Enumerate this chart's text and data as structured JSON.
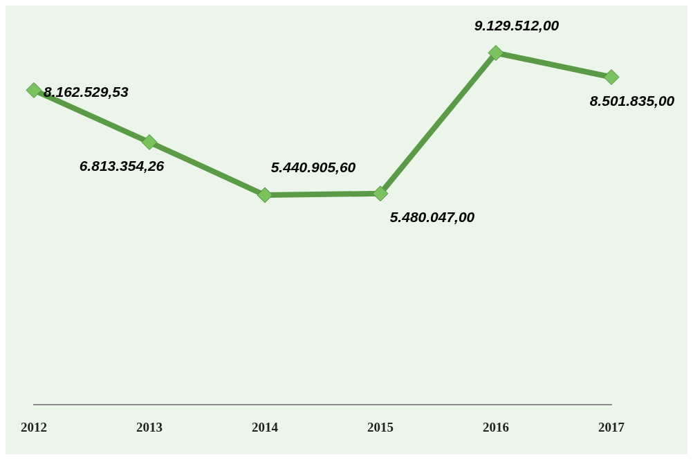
{
  "chart_data": {
    "type": "line",
    "categories": [
      "2012",
      "2013",
      "2014",
      "2015",
      "2016",
      "2017"
    ],
    "series": [
      {
        "color": "#5b9a46",
        "values": [
          8162529.53,
          6813354.26,
          5440905.6,
          5480047,
          9129512,
          8501835
        ],
        "value_labels": [
          "8.162.529,53",
          "6.813.354,26",
          "5.440.905,60",
          "5.480.047,00",
          "9.129.512,00",
          "8.501.835,00"
        ]
      }
    ],
    "marker": "diamond",
    "line_style": "solid",
    "grid": false,
    "legend": false
  }
}
